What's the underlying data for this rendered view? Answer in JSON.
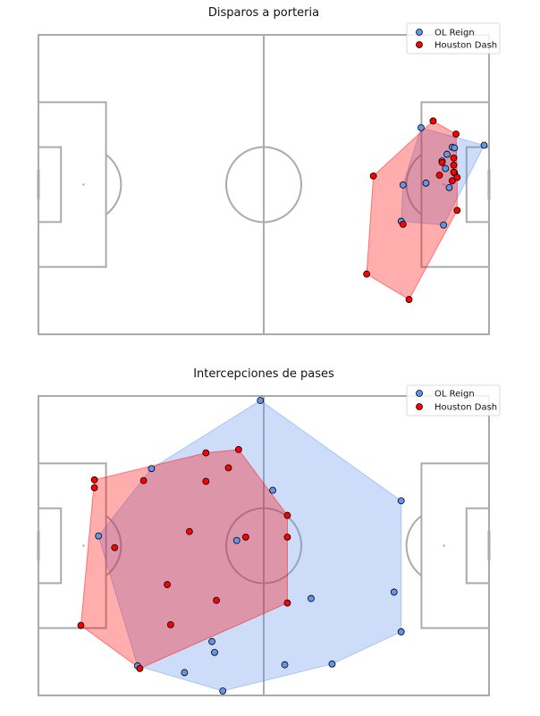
{
  "colors": {
    "ol_reign": "#6495ed",
    "houston_dash": "#ff0000",
    "pitch_lines": "#aaaaaa"
  },
  "chart_data": [
    {
      "type": "scatter",
      "title": "Disparos a porteria",
      "xlim": [
        0,
        120
      ],
      "ylim": [
        0,
        80
      ],
      "legend": "top-right",
      "hull_fill": true,
      "series": [
        {
          "name": "OL Reign",
          "color": "#6495ed",
          "points": [
            [
              101.9,
              55.2
            ],
            [
              118.7,
              50.5
            ],
            [
              110.2,
              50.0
            ],
            [
              108.8,
              48.1
            ],
            [
              110.8,
              49.8
            ],
            [
              107.5,
              46.3
            ],
            [
              108.4,
              44.3
            ],
            [
              110.8,
              43.1
            ],
            [
              109.4,
              39.2
            ],
            [
              97.1,
              39.9
            ],
            [
              103.2,
              40.4
            ],
            [
              107.9,
              29.2
            ],
            [
              96.6,
              30.2
            ]
          ]
        },
        {
          "name": "Houston Dash",
          "color": "#ff0000",
          "points": [
            [
              105.1,
              57.0
            ],
            [
              111.2,
              53.5
            ],
            [
              107.5,
              45.9
            ],
            [
              110.6,
              47.1
            ],
            [
              110.6,
              45.2
            ],
            [
              110.6,
              43.3
            ],
            [
              111.5,
              41.9
            ],
            [
              106.8,
              42.5
            ],
            [
              110.2,
              41.0
            ],
            [
              89.2,
              42.3
            ],
            [
              111.5,
              33.1
            ],
            [
              97.1,
              29.4
            ],
            [
              87.4,
              16.1
            ],
            [
              98.7,
              9.3
            ]
          ]
        }
      ]
    },
    {
      "type": "scatter",
      "title": "Intercepciones de pases",
      "xlim": [
        0,
        120
      ],
      "ylim": [
        0,
        80
      ],
      "legend": "top-right",
      "hull_fill": true,
      "series": [
        {
          "name": "OL Reign",
          "color": "#6495ed",
          "points": [
            [
              59.1,
              78.8
            ],
            [
              30.1,
              60.6
            ],
            [
              62.4,
              54.8
            ],
            [
              96.6,
              52.0
            ],
            [
              16.0,
              42.6
            ],
            [
              52.8,
              41.4
            ],
            [
              94.7,
              27.6
            ],
            [
              72.6,
              25.9
            ],
            [
              96.6,
              17.0
            ],
            [
              46.2,
              14.4
            ],
            [
              46.9,
              11.5
            ],
            [
              26.4,
              7.9
            ],
            [
              65.6,
              8.2
            ],
            [
              78.2,
              8.4
            ],
            [
              38.9,
              6.1
            ],
            [
              49.1,
              1.2
            ]
          ]
        },
        {
          "name": "Houston Dash",
          "color": "#ff0000",
          "points": [
            [
              53.3,
              65.7
            ],
            [
              44.6,
              64.8
            ],
            [
              50.6,
              60.8
            ],
            [
              14.9,
              57.6
            ],
            [
              14.9,
              55.5
            ],
            [
              28.0,
              57.4
            ],
            [
              44.6,
              57.2
            ],
            [
              66.3,
              48.1
            ],
            [
              40.2,
              43.8
            ],
            [
              55.2,
              42.3
            ],
            [
              66.3,
              42.3
            ],
            [
              20.3,
              39.5
            ],
            [
              34.3,
              29.6
            ],
            [
              47.4,
              25.4
            ],
            [
              66.3,
              24.7
            ],
            [
              35.2,
              18.9
            ],
            [
              11.3,
              18.7
            ],
            [
              27.0,
              7.2
            ]
          ]
        }
      ]
    }
  ]
}
